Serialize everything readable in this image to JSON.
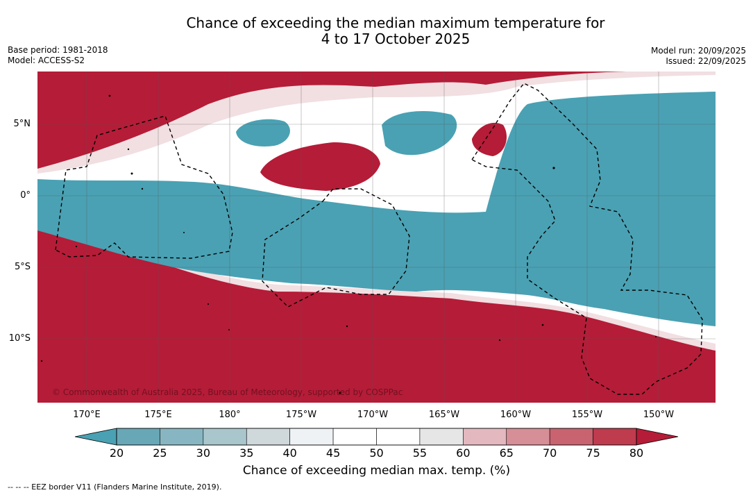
{
  "title": {
    "line1": "Chance of exceeding the median maximum temperature for",
    "line2": "4 to 17 October 2025"
  },
  "meta_left": {
    "base_period": "Base period: 1981-2018",
    "model": "Model: ACCESS-S2"
  },
  "meta_right": {
    "model_run": "Model run: 20/09/2025",
    "issued": "Issued: 22/09/2025"
  },
  "map": {
    "lat_labels": [
      "5°N",
      "0°",
      "5°S",
      "10°S"
    ],
    "lon_labels": [
      "170°E",
      "175°E",
      "180°",
      "175°W",
      "170°W",
      "165°W",
      "160°W",
      "155°W",
      "150°W"
    ],
    "copyright": "© Commonwealth of Australia 2025, Bureau of Meteorology, supported by COSPPac",
    "colors": {
      "below_strong": "#4aa1b3",
      "above_strong": "#b51c37",
      "neutral": "#ffffff"
    }
  },
  "colorbar": {
    "ticks": [
      "20",
      "25",
      "30",
      "35",
      "40",
      "45",
      "50",
      "55",
      "60",
      "65",
      "70",
      "75",
      "80"
    ],
    "colors": [
      "#68a7b6",
      "#87b6c2",
      "#a8c6cc",
      "#cfd8db",
      "#eef2f5",
      "#ffffff",
      "#ffffff",
      "#e6e6e6",
      "#e3b8bf",
      "#d68e97",
      "#c9636f",
      "#bf3b4e"
    ],
    "low_extend_color": "#4aa1b3",
    "high_extend_color": "#b51c37",
    "label": "Chance of exceeding median max. temp. (%)"
  },
  "footer": {
    "legend": "--  --  -- EEZ border V11 (Flanders Marine Institute, 2019)."
  }
}
